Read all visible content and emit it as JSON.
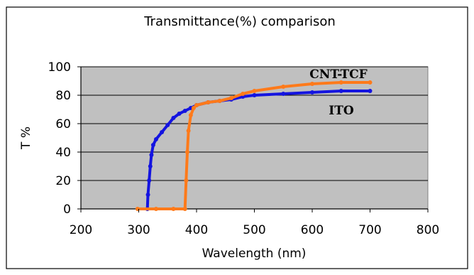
{
  "chart_data": {
    "type": "line",
    "title": "Transmittance(%) comparison",
    "xlabel": "Wavelength (nm)",
    "ylabel": "T %",
    "xlim": [
      200,
      800
    ],
    "ylim": [
      0,
      100
    ],
    "xticks": [
      "200",
      "300",
      "400",
      "500",
      "600",
      "700",
      "800"
    ],
    "yticks": [
      "0",
      "20",
      "40",
      "60",
      "80",
      "100"
    ],
    "grid": true,
    "series": [
      {
        "name": "ITO",
        "color": "#1414e0",
        "points": [
          [
            315,
            0
          ],
          [
            316,
            10
          ],
          [
            318,
            20
          ],
          [
            320,
            30
          ],
          [
            322,
            38
          ],
          [
            325,
            45
          ],
          [
            330,
            49
          ],
          [
            340,
            54
          ],
          [
            350,
            59
          ],
          [
            360,
            64
          ],
          [
            370,
            67
          ],
          [
            380,
            69
          ],
          [
            390,
            71
          ],
          [
            400,
            73
          ],
          [
            420,
            75
          ],
          [
            440,
            76
          ],
          [
            460,
            77
          ],
          [
            480,
            79
          ],
          [
            500,
            80
          ],
          [
            550,
            81
          ],
          [
            600,
            82
          ],
          [
            650,
            83
          ],
          [
            700,
            83
          ]
        ]
      },
      {
        "name": "CNT-TCF",
        "color": "#ff7a1a",
        "points": [
          [
            298,
            0
          ],
          [
            330,
            0
          ],
          [
            360,
            0
          ],
          [
            380,
            0
          ],
          [
            382,
            20
          ],
          [
            384,
            40
          ],
          [
            386,
            55
          ],
          [
            390,
            66
          ],
          [
            395,
            71
          ],
          [
            400,
            73
          ],
          [
            420,
            75
          ],
          [
            440,
            76
          ],
          [
            460,
            78
          ],
          [
            480,
            81
          ],
          [
            500,
            83
          ],
          [
            550,
            86
          ],
          [
            600,
            88
          ],
          [
            650,
            89
          ],
          [
            700,
            89
          ]
        ]
      }
    ]
  }
}
